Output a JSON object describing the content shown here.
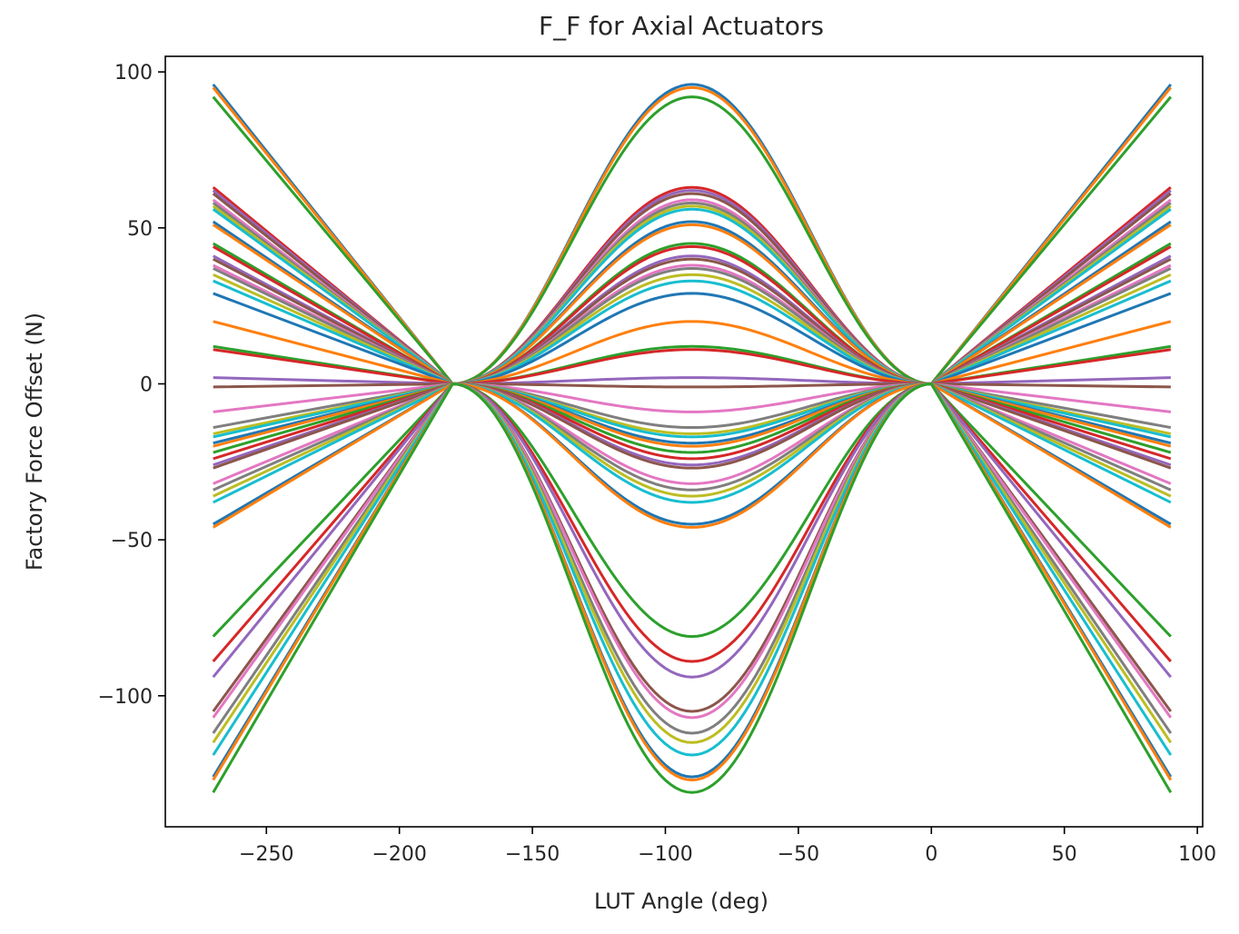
{
  "chart_data": {
    "type": "line",
    "title": "F_F for Axial Actuators",
    "xlabel": "LUT Angle (deg)",
    "ylabel": "Factory Force Offset (N)",
    "xlim": [
      -288,
      102
    ],
    "ylim": [
      -142,
      105
    ],
    "xticks": [
      -250,
      -200,
      -150,
      -100,
      -50,
      0,
      50,
      100
    ],
    "xtick_labels": [
      "−250",
      "−200",
      "−150",
      "−100",
      "−50",
      "0",
      "50",
      "100"
    ],
    "yticks": [
      -100,
      -50,
      0,
      50,
      100
    ],
    "ytick_labels": [
      "−100",
      "−50",
      "0",
      "50",
      "100"
    ],
    "grid": false,
    "x_breakpoints": [
      -270,
      -180,
      0,
      90
    ],
    "curve_shape": "constant for x ≤ -180 and x ≥ 0; amplitude·cos²(x+90°) between -180 and 0",
    "amplitudes": [
      96,
      95,
      92,
      63,
      62,
      61,
      59,
      58,
      57,
      56,
      52,
      51,
      45,
      44,
      41,
      40,
      38,
      37,
      35,
      33,
      29,
      20,
      12,
      11,
      2,
      -1,
      -9,
      -14,
      -16,
      -17,
      -19,
      -20,
      -22,
      -24,
      -26,
      -27,
      -32,
      -34,
      -36,
      -38,
      -45,
      -46,
      -81,
      -89,
      -94,
      -105,
      -107,
      -112,
      -115,
      -119,
      -126,
      -127,
      -131
    ],
    "colors": [
      "#1f77b4",
      "#ff7f0e",
      "#2ca02c",
      "#d62728",
      "#9467bd",
      "#8c564b",
      "#e377c2",
      "#7f7f7f",
      "#bcbd22",
      "#17becf"
    ]
  }
}
